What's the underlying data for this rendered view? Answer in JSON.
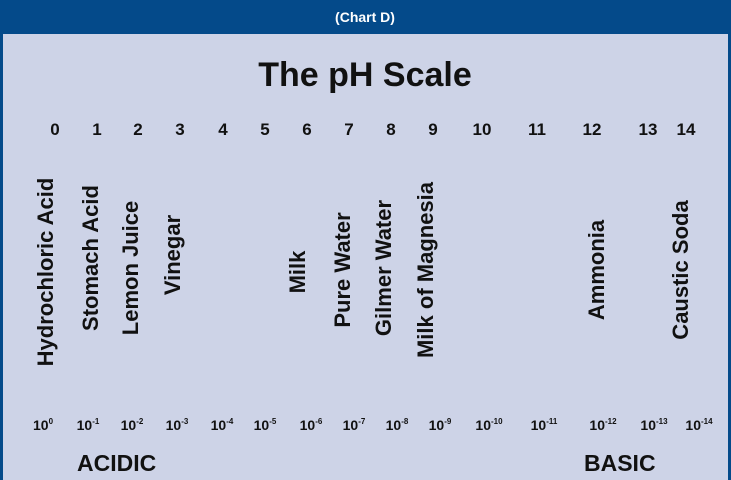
{
  "header": {
    "label": "(Chart D)"
  },
  "title": "The pH Scale",
  "scale": [
    "0",
    "1",
    "2",
    "3",
    "4",
    "5",
    "6",
    "7",
    "8",
    "9",
    "10",
    "11",
    "12",
    "13",
    "14"
  ],
  "substances": [
    "Hydrochloric Acid",
    "Stomach Acid",
    "Lemon Juice",
    "Vinegar",
    "Milk",
    "Pure Water",
    "Gilmer Water",
    "Milk of Magnesia",
    "Ammonia",
    "Caustic Soda"
  ],
  "concentrations": [
    {
      "base": "10",
      "exponent": "0"
    },
    {
      "base": "10",
      "exponent": "-1"
    },
    {
      "base": "10",
      "exponent": "-2"
    },
    {
      "base": "10",
      "exponent": "-3"
    },
    {
      "base": "10",
      "exponent": "-4"
    },
    {
      "base": "10",
      "exponent": "-5"
    },
    {
      "base": "10",
      "exponent": "-6"
    },
    {
      "base": "10",
      "exponent": "-7"
    },
    {
      "base": "10",
      "exponent": "-8"
    },
    {
      "base": "10",
      "exponent": "-9"
    },
    {
      "base": "10",
      "exponent": "-10"
    },
    {
      "base": "10",
      "exponent": "-11"
    },
    {
      "base": "10",
      "exponent": "-12"
    },
    {
      "base": "10",
      "exponent": "-13"
    },
    {
      "base": "10",
      "exponent": "-14"
    }
  ],
  "ends": {
    "acidic": "ACIDIC",
    "basic": "BASIC"
  }
}
